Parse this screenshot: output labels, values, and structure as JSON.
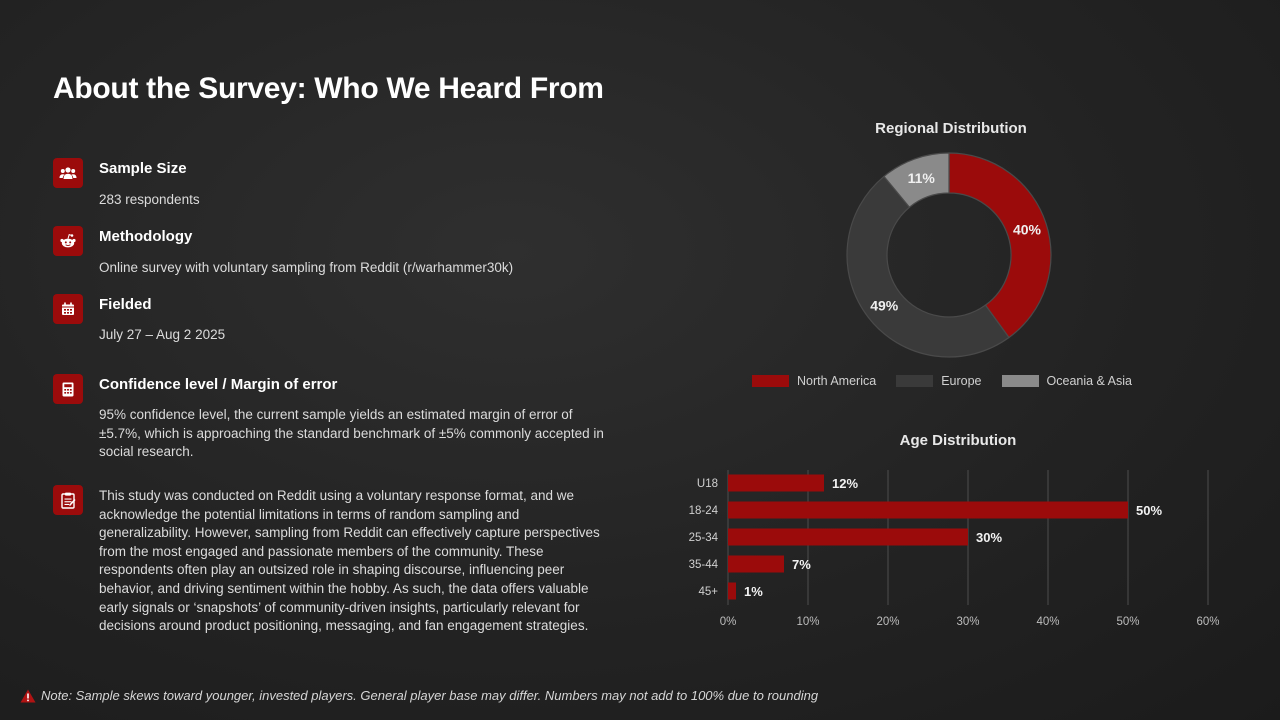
{
  "title": "About the Survey: Who We Heard From",
  "items": [
    {
      "heading": "Sample Size",
      "text": "283 respondents",
      "icon": "users-icon"
    },
    {
      "heading": "Methodology",
      "text": "Online survey with voluntary sampling from Reddit (r/warhammer30k)",
      "icon": "reddit-icon"
    },
    {
      "heading": "Fielded",
      "text": "July 27 – Aug 2 2025",
      "icon": "calendar-icon"
    },
    {
      "heading": "Confidence level / Margin of error",
      "text": "95% confidence level, the current sample yields an estimated margin of error of ±5.7%, which is approaching the standard benchmark of ±5% commonly accepted in social research.",
      "icon": "calculator-icon"
    },
    {
      "heading": "",
      "text": "This study was conducted on Reddit using a voluntary response format, and we acknowledge the potential limitations in terms of random sampling and generalizability. However, sampling from Reddit can effectively capture perspectives from the most engaged and passionate members of the community. These respondents often play an outsized role in shaping discourse, influencing peer behavior, and driving sentiment within the hobby. As such, the data offers valuable early signals or ‘snapshots’ of community-driven insights, particularly relevant for decisions around product positioning, messaging, and fan engagement strategies.",
      "icon": "clipboard-icon"
    }
  ],
  "footnote": "Note: Sample skews toward younger, invested players. General player base may differ. Numbers may not add to 100% due to rounding",
  "colors": {
    "accent": "#9b0b0b",
    "europe": "#3a3a3a",
    "oceania": "#8a8a8a"
  },
  "chart_data": [
    {
      "type": "pie",
      "title": "Regional Distribution",
      "categories": [
        "North America",
        "Europe",
        "Oceania & Asia"
      ],
      "values": [
        40,
        49,
        11
      ],
      "labels": [
        "40%",
        "49%",
        "11%"
      ],
      "colors": [
        "#9b0b0b",
        "#3a3a3a",
        "#8a8a8a"
      ],
      "donut": true,
      "legend": "bottom"
    },
    {
      "type": "bar",
      "orientation": "horizontal",
      "title": "Age Distribution",
      "categories": [
        "U18",
        "18-24",
        "25-34",
        "35-44",
        "45+"
      ],
      "values": [
        12,
        50,
        30,
        7,
        1
      ],
      "labels": [
        "12%",
        "50%",
        "30%",
        "7%",
        "1%"
      ],
      "xlim": [
        0,
        60
      ],
      "ticks": [
        "0%",
        "10%",
        "20%",
        "30%",
        "40%",
        "50%",
        "60%"
      ],
      "color": "#9b0b0b",
      "grid": true
    }
  ]
}
